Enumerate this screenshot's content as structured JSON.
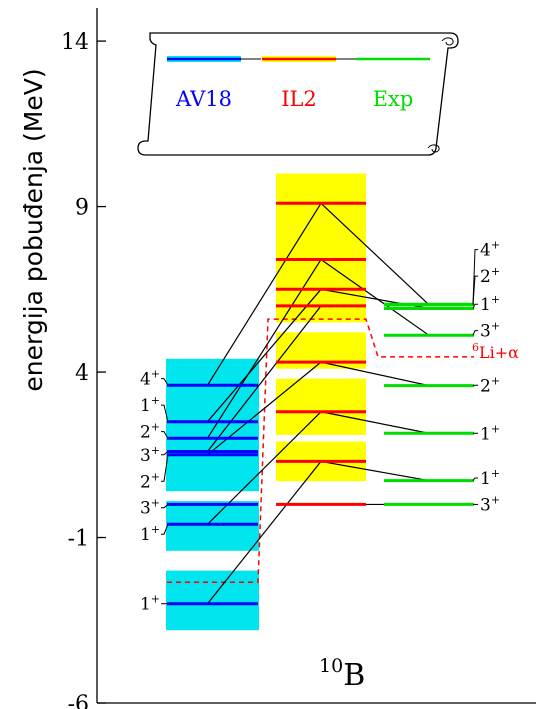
{
  "chart_data": {
    "type": "level-scheme",
    "ylabel": "energija pobuđenja (MeV)",
    "ylim": [
      -6,
      15
    ],
    "yticks": [
      -6,
      -1,
      4,
      9,
      14
    ],
    "nucleus": {
      "mass": "10",
      "symbol": "B"
    },
    "legend": {
      "entries": [
        {
          "name": "AV18",
          "color": "#0000ff"
        },
        {
          "name": "IL2",
          "color": "#ff0000"
        },
        {
          "name": "Exp",
          "color": "#00dd00"
        }
      ]
    },
    "threshold": {
      "label_mass": "6",
      "label_text": "Li+α",
      "color": "#ff0000"
    },
    "columns": [
      {
        "name": "AV18",
        "line_color": "#0000ff",
        "band_color": "#00e5ee",
        "bands": [
          [
            -3.8,
            -2.0
          ],
          [
            -1.4,
            0.1
          ],
          [
            0.4,
            4.4
          ]
        ],
        "threshold_energy": -2.35,
        "levels": [
          {
            "energy": -3.0,
            "spin": "1",
            "parity": "+",
            "label_y": -3.0
          },
          {
            "energy": -0.6,
            "spin": "1",
            "parity": "+",
            "label_y": -0.9
          },
          {
            "energy": 0.0,
            "spin": "3",
            "parity": "+",
            "label_y": -0.1
          },
          {
            "energy": 1.5,
            "spin": "2",
            "parity": "+",
            "label_y": 0.7
          },
          {
            "energy": 1.6,
            "spin": "3",
            "parity": "+",
            "label_y": 1.5
          },
          {
            "energy": 2.0,
            "spin": "2",
            "parity": "+",
            "label_y": 2.2
          },
          {
            "energy": 2.5,
            "spin": "1",
            "parity": "+",
            "label_y": 3.0
          },
          {
            "energy": 3.6,
            "spin": "4",
            "parity": "+",
            "label_y": 3.8
          }
        ]
      },
      {
        "name": "IL2",
        "line_color": "#ff0000",
        "band_color": "#ffff00",
        "bands": [
          [
            0.7,
            1.9
          ],
          [
            2.1,
            3.8
          ],
          [
            4.1,
            5.2
          ],
          [
            5.5,
            10.0
          ]
        ],
        "threshold_energy": 5.6,
        "levels": [
          {
            "energy": 0.0,
            "spin": "",
            "parity": ""
          },
          {
            "energy": 1.3,
            "spin": "",
            "parity": ""
          },
          {
            "energy": 2.8,
            "spin": "",
            "parity": ""
          },
          {
            "energy": 4.3,
            "spin": "",
            "parity": ""
          },
          {
            "energy": 6.0,
            "spin": "",
            "parity": ""
          },
          {
            "energy": 6.5,
            "spin": "",
            "parity": ""
          },
          {
            "energy": 7.4,
            "spin": "",
            "parity": ""
          },
          {
            "energy": 9.1,
            "spin": "",
            "parity": ""
          }
        ]
      },
      {
        "name": "Exp",
        "line_color": "#00dd00",
        "band_color": "",
        "threshold_energy": 4.46,
        "levels": [
          {
            "energy": 0.0,
            "spin": "3",
            "parity": "+",
            "label_y": 0.0
          },
          {
            "energy": 0.72,
            "spin": "1",
            "parity": "+",
            "label_y": 0.8
          },
          {
            "energy": 2.15,
            "spin": "1",
            "parity": "+",
            "label_y": 2.15
          },
          {
            "energy": 3.59,
            "spin": "2",
            "parity": "+",
            "label_y": 3.6
          },
          {
            "energy": 5.11,
            "spin": "3",
            "parity": "+",
            "label_y": 5.25
          },
          {
            "energy": 5.92,
            "spin": "1",
            "parity": "+",
            "label_y": 6.05
          },
          {
            "energy": 6.03,
            "spin": "2",
            "parity": "+",
            "label_y": 6.9
          },
          {
            "energy": 6.05,
            "spin": "4",
            "parity": "+",
            "label_y": 7.7
          }
        ]
      }
    ],
    "connections": [
      {
        "from": [
          0,
          0
        ],
        "to": [
          1,
          1
        ]
      },
      {
        "from": [
          1,
          1
        ],
        "to": [
          2,
          1
        ]
      },
      {
        "from": [
          1,
          0
        ],
        "to": [
          2,
          0
        ]
      },
      {
        "from": [
          0,
          1
        ],
        "to": [
          1,
          2
        ]
      },
      {
        "from": [
          1,
          2
        ],
        "to": [
          2,
          2
        ]
      },
      {
        "from": [
          0,
          3
        ],
        "to": [
          1,
          3
        ]
      },
      {
        "from": [
          1,
          3
        ],
        "to": [
          2,
          3
        ]
      },
      {
        "from": [
          0,
          5
        ],
        "to": [
          1,
          6
        ]
      },
      {
        "from": [
          1,
          6
        ],
        "to": [
          2,
          4
        ]
      },
      {
        "from": [
          0,
          6
        ],
        "to": [
          1,
          5
        ]
      },
      {
        "from": [
          1,
          5
        ],
        "to": [
          2,
          5
        ]
      },
      {
        "from": [
          0,
          7
        ],
        "to": [
          1,
          7
        ]
      },
      {
        "from": [
          1,
          7
        ],
        "to": [
          2,
          6
        ]
      },
      {
        "from": [
          0,
          4
        ],
        "to": [
          1,
          4
        ]
      }
    ]
  }
}
